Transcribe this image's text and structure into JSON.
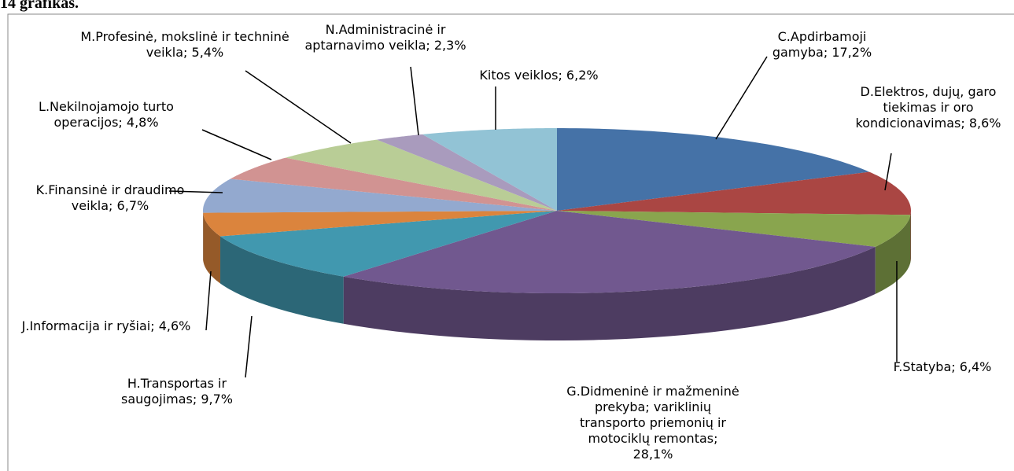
{
  "chart_data": {
    "type": "pie3d",
    "title": "14 grafikas.",
    "categories": [
      "C.Apdirbamoji gamyba;",
      "D.Elektros, dujų, garo tiekimas ir oro kondicionavimas;",
      "F.Statyba;",
      "G.Didmeninė ir mažmeninė prekyba; variklinių transporto priemonių ir motociklų remontas;",
      "H.Transportas ir saugojimas;",
      "J.Informacija ir ryšiai;",
      "K.Finansinė ir draudimo veikla;",
      "L.Nekilnojamojo turto operacijos;",
      "M.Profesinė, mokslinė ir techninė veikla;",
      "N.Administracinė ir aptarnavimo veikla;",
      "Kitos veiklos;"
    ],
    "values": [
      17.2,
      8.6,
      6.4,
      28.1,
      9.7,
      4.6,
      6.7,
      4.8,
      5.4,
      2.3,
      6.2
    ],
    "value_labels": [
      "17,2%",
      "8,6%",
      "6,4%",
      "28,1%",
      "9,7%",
      "4,6%",
      "6,7%",
      "4,8%",
      "5,4%",
      "2,3%",
      "6,2%"
    ],
    "colors": [
      "#4572a7",
      "#aa4643",
      "#89a54e",
      "#71588f",
      "#4198af",
      "#db843d",
      "#93a9cf",
      "#d19392",
      "#b9cd96",
      "#a99bbd",
      "#92c3d5"
    ]
  }
}
